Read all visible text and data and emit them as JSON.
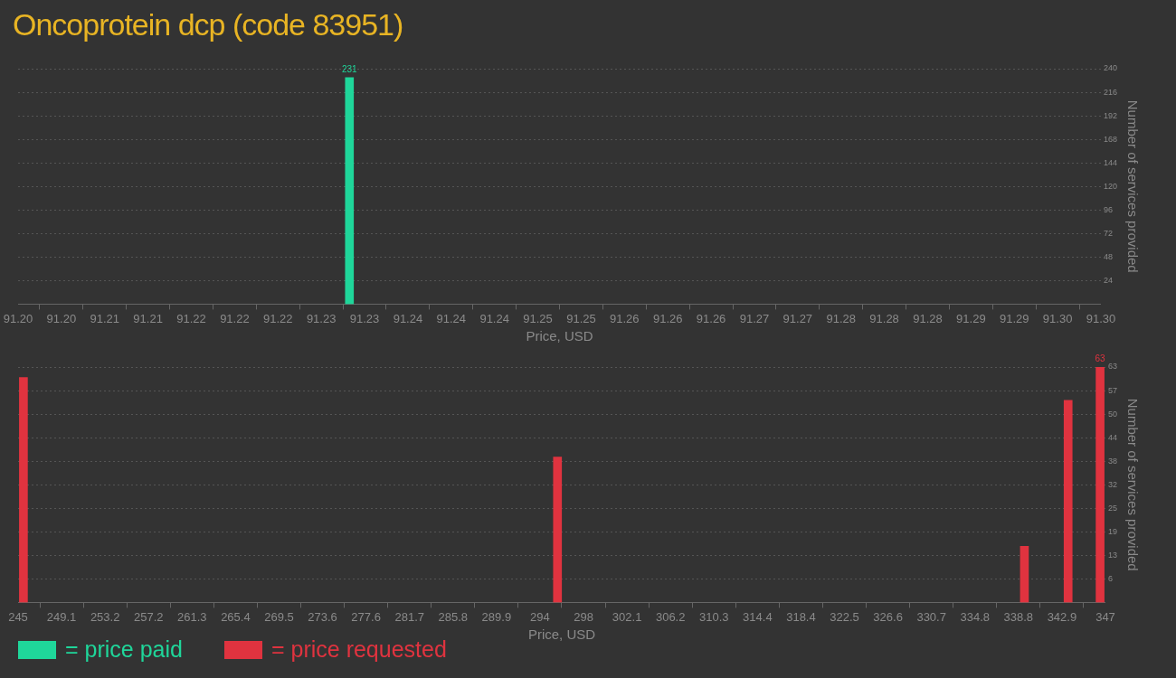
{
  "chart_data": [
    {
      "type": "bar",
      "title": "Oncoprotein dcp (code 83951)",
      "xlabel": "Price, USD",
      "ylabel": "Number of services provided",
      "series": [
        {
          "name": "= price paid",
          "color": "#1fd69a",
          "x": [
            91.2306
          ],
          "values": [
            231
          ],
          "value_labels": [
            "231"
          ]
        }
      ],
      "xlim": [
        91.2,
        91.3
      ],
      "xticks": [
        {
          "value": 91.2,
          "label": "91.20"
        },
        {
          "value": 91.204,
          "label": "91.20"
        },
        {
          "value": 91.208,
          "label": "91.21"
        },
        {
          "value": 91.212,
          "label": "91.21"
        },
        {
          "value": 91.216,
          "label": "91.22"
        },
        {
          "value": 91.22,
          "label": "91.22"
        },
        {
          "value": 91.224,
          "label": "91.22"
        },
        {
          "value": 91.228,
          "label": "91.23"
        },
        {
          "value": 91.232,
          "label": "91.23"
        },
        {
          "value": 91.236,
          "label": "91.24"
        },
        {
          "value": 91.24,
          "label": "91.24"
        },
        {
          "value": 91.244,
          "label": "91.24"
        },
        {
          "value": 91.248,
          "label": "91.25"
        },
        {
          "value": 91.252,
          "label": "91.25"
        },
        {
          "value": 91.256,
          "label": "91.26"
        },
        {
          "value": 91.26,
          "label": "91.26"
        },
        {
          "value": 91.264,
          "label": "91.26"
        },
        {
          "value": 91.268,
          "label": "91.27"
        },
        {
          "value": 91.272,
          "label": "91.27"
        },
        {
          "value": 91.276,
          "label": "91.28"
        },
        {
          "value": 91.28,
          "label": "91.28"
        },
        {
          "value": 91.284,
          "label": "91.28"
        },
        {
          "value": 91.288,
          "label": "91.29"
        },
        {
          "value": 91.292,
          "label": "91.29"
        },
        {
          "value": 91.296,
          "label": "91.30"
        },
        {
          "value": 91.3,
          "label": "91.30"
        }
      ],
      "ylim": [
        0,
        240
      ],
      "yticks": [
        24,
        48,
        72,
        96,
        120,
        144,
        168,
        192,
        216,
        240
      ],
      "grid": "y",
      "legend": "bottom left"
    },
    {
      "type": "bar",
      "xlabel": "Price, USD",
      "ylabel": "Number of services provided",
      "series": [
        {
          "name": "= price requested",
          "color": "#e0333f",
          "x": [
            245.5,
            295.6,
            339.4,
            343.5,
            346.5
          ],
          "values": [
            60.2,
            38.9,
            15,
            54.1,
            63
          ],
          "value_labels": [
            null,
            null,
            null,
            null,
            "63"
          ]
        }
      ],
      "xlim": [
        245,
        347
      ],
      "xticks": [
        {
          "value": 245,
          "label": "245"
        },
        {
          "value": 249.08,
          "label": "249.1"
        },
        {
          "value": 253.16,
          "label": "253.2"
        },
        {
          "value": 257.24,
          "label": "257.2"
        },
        {
          "value": 261.32,
          "label": "261.3"
        },
        {
          "value": 265.4,
          "label": "265.4"
        },
        {
          "value": 269.48,
          "label": "269.5"
        },
        {
          "value": 273.56,
          "label": "273.6"
        },
        {
          "value": 277.64,
          "label": "277.6"
        },
        {
          "value": 281.72,
          "label": "281.7"
        },
        {
          "value": 285.8,
          "label": "285.8"
        },
        {
          "value": 289.88,
          "label": "289.9"
        },
        {
          "value": 293.96,
          "label": "294"
        },
        {
          "value": 298.04,
          "label": "298"
        },
        {
          "value": 302.12,
          "label": "302.1"
        },
        {
          "value": 306.2,
          "label": "306.2"
        },
        {
          "value": 310.28,
          "label": "310.3"
        },
        {
          "value": 314.36,
          "label": "314.4"
        },
        {
          "value": 318.44,
          "label": "318.4"
        },
        {
          "value": 322.52,
          "label": "322.5"
        },
        {
          "value": 326.6,
          "label": "326.6"
        },
        {
          "value": 330.68,
          "label": "330.7"
        },
        {
          "value": 334.76,
          "label": "334.8"
        },
        {
          "value": 338.84,
          "label": "338.8"
        },
        {
          "value": 342.92,
          "label": "342.9"
        },
        {
          "value": 347,
          "label": "347"
        }
      ],
      "ylim": [
        0,
        63
      ],
      "yticks": [
        {
          "value": 6.3,
          "label": "6"
        },
        {
          "value": 12.6,
          "label": "13"
        },
        {
          "value": 18.9,
          "label": "19"
        },
        {
          "value": 25.2,
          "label": "25"
        },
        {
          "value": 31.5,
          "label": "32"
        },
        {
          "value": 37.8,
          "label": "38"
        },
        {
          "value": 44.1,
          "label": "44"
        },
        {
          "value": 50.4,
          "label": "50"
        },
        {
          "value": 56.7,
          "label": "57"
        },
        {
          "value": 63,
          "label": "63"
        }
      ],
      "grid": "y",
      "legend": "bottom left"
    }
  ]
}
